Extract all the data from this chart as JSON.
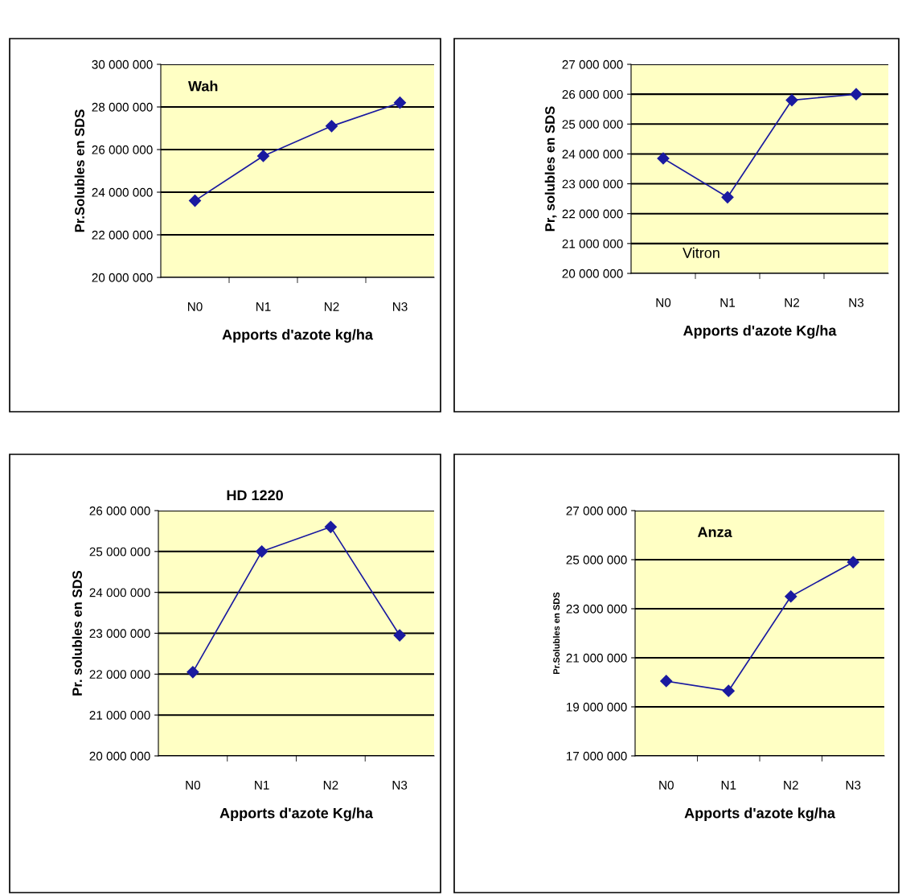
{
  "chart_data": [
    {
      "type": "line",
      "title": "Wah",
      "xlabel": "Apports d'azote kg/ha",
      "ylabel": "Pr.Solubles en SDS",
      "categories": [
        "N0",
        "N1",
        "N2",
        "N3"
      ],
      "series": [
        {
          "color": "#1a1aa0",
          "values": [
            23600000,
            25700000,
            27100000,
            28200000
          ]
        }
      ],
      "ylim": [
        20000000,
        30000000
      ],
      "yticks": [
        {
          "value": 20000000,
          "label": "20 000 000"
        },
        {
          "value": 22000000,
          "label": "22 000 000"
        },
        {
          "value": 24000000,
          "label": "24 000 000"
        },
        {
          "value": 26000000,
          "label": "26 000 000"
        },
        {
          "value": 28000000,
          "label": "28 000 000"
        },
        {
          "value": 30000000,
          "label": "30 000 000"
        }
      ],
      "grid": "y",
      "marker": "diamond",
      "line_style": "solid",
      "legend": false
    },
    {
      "type": "line",
      "title": "Vitron",
      "xlabel": "Apports d'azote Kg/ha",
      "ylabel": "Pr, solubles en SDS",
      "categories": [
        "N0",
        "N1",
        "N2",
        "N3"
      ],
      "series": [
        {
          "color": "#1a1aa0",
          "values": [
            23850000,
            22550000,
            25800000,
            26000000
          ]
        }
      ],
      "ylim": [
        20000000,
        27000000
      ],
      "yticks": [
        {
          "value": 20000000,
          "label": "20 000 000"
        },
        {
          "value": 21000000,
          "label": "21 000 000"
        },
        {
          "value": 22000000,
          "label": "22 000 000"
        },
        {
          "value": 23000000,
          "label": "23 000 000"
        },
        {
          "value": 24000000,
          "label": "24 000 000"
        },
        {
          "value": 25000000,
          "label": "25 000 000"
        },
        {
          "value": 26000000,
          "label": "26 000 000"
        },
        {
          "value": 27000000,
          "label": "27 000 000"
        }
      ],
      "grid": "y",
      "marker": "diamond",
      "line_style": "solid",
      "legend": false
    },
    {
      "type": "line",
      "title": "HD 1220",
      "xlabel": "Apports d'azote Kg/ha",
      "ylabel": "Pr. solubles en SDS",
      "categories": [
        "N0",
        "N1",
        "N2",
        "N3"
      ],
      "series": [
        {
          "color": "#1a1aa0",
          "values": [
            22050000,
            25000000,
            25600000,
            22950000
          ]
        }
      ],
      "ylim": [
        20000000,
        26000000
      ],
      "yticks": [
        {
          "value": 20000000,
          "label": "20 000 000"
        },
        {
          "value": 21000000,
          "label": "21 000 000"
        },
        {
          "value": 22000000,
          "label": "22 000 000"
        },
        {
          "value": 23000000,
          "label": "23 000 000"
        },
        {
          "value": 24000000,
          "label": "24 000 000"
        },
        {
          "value": 25000000,
          "label": "25 000 000"
        },
        {
          "value": 26000000,
          "label": "26 000 000"
        }
      ],
      "grid": "y",
      "marker": "diamond",
      "line_style": "solid",
      "legend": false
    },
    {
      "type": "line",
      "title": "Anza",
      "xlabel": "Apports d'azote kg/ha",
      "ylabel": "Pr.Solubles en SDS",
      "categories": [
        "N0",
        "N1",
        "N2",
        "N3"
      ],
      "series": [
        {
          "color": "#1a1aa0",
          "values": [
            20050000,
            19650000,
            23500000,
            24900000
          ]
        }
      ],
      "ylim": [
        17000000,
        27000000
      ],
      "yticks": [
        {
          "value": 17000000,
          "label": "17 000 000"
        },
        {
          "value": 19000000,
          "label": "19 000 000"
        },
        {
          "value": 21000000,
          "label": "21 000 000"
        },
        {
          "value": 23000000,
          "label": "23 000 000"
        },
        {
          "value": 25000000,
          "label": "25 000 000"
        },
        {
          "value": 27000000,
          "label": "27 000 000"
        }
      ],
      "grid": "y",
      "marker": "diamond",
      "line_style": "solid",
      "legend": false
    }
  ]
}
